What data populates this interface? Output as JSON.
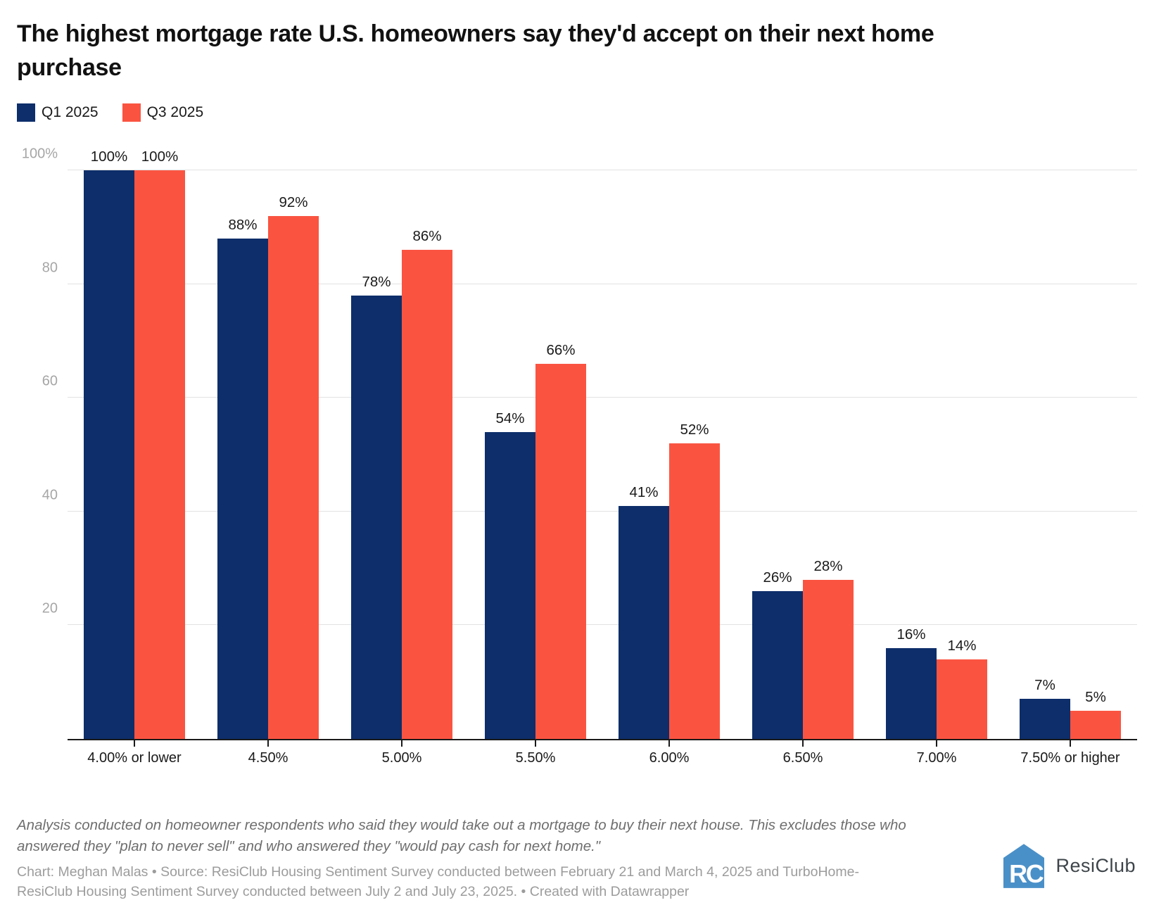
{
  "title": "The highest mortgage rate U.S. homeowners say they'd accept on their next home purchase",
  "legend": [
    {
      "label": "Q1 2025",
      "color": "#0d2e6a"
    },
    {
      "label": "Q3 2025",
      "color": "#fa5441"
    }
  ],
  "chart_data": {
    "type": "bar",
    "title": "The highest mortgage rate U.S. homeowners say they'd accept on their next home purchase",
    "categories": [
      "4.00% or lower",
      "4.50%",
      "5.00%",
      "5.50%",
      "6.00%",
      "6.50%",
      "7.00%",
      "7.50% or higher"
    ],
    "series": [
      {
        "name": "Q1 2025",
        "color": "#0d2e6a",
        "values": [
          100,
          88,
          78,
          54,
          41,
          26,
          16,
          7
        ]
      },
      {
        "name": "Q3 2025",
        "color": "#fa5441",
        "values": [
          100,
          92,
          86,
          66,
          52,
          28,
          14,
          5
        ]
      }
    ],
    "value_suffix": "%",
    "xlabel": "",
    "ylabel": "",
    "ylim": [
      0,
      100
    ],
    "y_ticks": [
      {
        "value": 100,
        "label": "100%"
      },
      {
        "value": 80,
        "label": "80"
      },
      {
        "value": 60,
        "label": "60"
      },
      {
        "value": 40,
        "label": "40"
      },
      {
        "value": 20,
        "label": "20"
      }
    ],
    "grid": true,
    "legend_position": "top-left"
  },
  "note": "Analysis conducted on homeowner respondents who said they would take out a mortgage to buy their next house. This excludes those who answered they \"plan to never sell\" and who answered they \"would pay cash for next home.\"",
  "credit": {
    "line1": "Chart: Meghan Malas • Source: ResiClub Housing Sentiment Survey conducted between February 21 and March 4, 2025 and TurboHome-",
    "line2": "ResiClub Housing Sentiment Survey conducted between July 2 and July 23, 2025. • Created with Datawrapper"
  },
  "logo": {
    "monogram": "RC",
    "text": "ResiClub",
    "house_color": "#4a90c8",
    "text_color": "#3e454a"
  }
}
